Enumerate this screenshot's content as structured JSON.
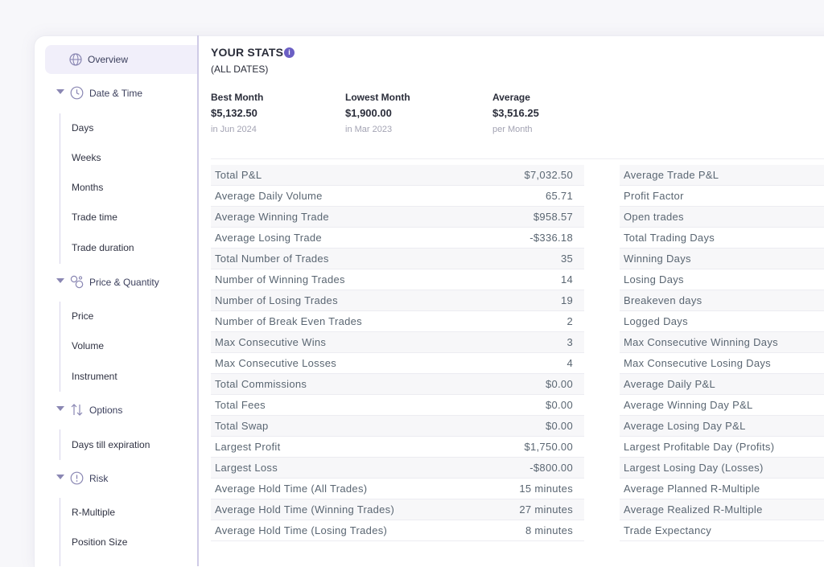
{
  "sidebar": {
    "overview": "Overview",
    "sections": [
      {
        "label": "Date & Time",
        "icon": "clock-icon",
        "items": [
          "Days",
          "Weeks",
          "Months",
          "Trade time",
          "Trade duration"
        ]
      },
      {
        "label": "Price & Quantity",
        "icon": "price-quantity-icon",
        "items": [
          "Price",
          "Volume",
          "Instrument"
        ]
      },
      {
        "label": "Options",
        "icon": "up-down-arrows-icon",
        "items": [
          "Days till expiration"
        ]
      },
      {
        "label": "Risk",
        "icon": "alert-circle-icon",
        "items": [
          "R-Multiple",
          "Position Size"
        ]
      }
    ]
  },
  "stats": {
    "title": "YOUR STATS",
    "info": "i",
    "subtitle": "(ALL DATES)",
    "kpis": [
      {
        "label": "Best Month",
        "value": "$5,132.50",
        "note": "in Jun 2024"
      },
      {
        "label": "Lowest Month",
        "value": "$1,900.00",
        "note": "in Mar 2023"
      },
      {
        "label": "Average",
        "value": "$3,516.25",
        "note": "per Month"
      }
    ]
  },
  "left_table": [
    {
      "name": "Total P&L",
      "value": "$7,032.50"
    },
    {
      "name": "Average Daily Volume",
      "value": "65.71"
    },
    {
      "name": "Average Winning Trade",
      "value": "$958.57"
    },
    {
      "name": "Average Losing Trade",
      "value": "-$336.18"
    },
    {
      "name": "Total Number of Trades",
      "value": "35"
    },
    {
      "name": "Number of Winning Trades",
      "value": "14"
    },
    {
      "name": "Number of Losing Trades",
      "value": "19"
    },
    {
      "name": "Number of Break Even Trades",
      "value": "2"
    },
    {
      "name": "Max Consecutive Wins",
      "value": "3"
    },
    {
      "name": "Max Consecutive Losses",
      "value": "4"
    },
    {
      "name": "Total Commissions",
      "value": "$0.00"
    },
    {
      "name": "Total Fees",
      "value": "$0.00"
    },
    {
      "name": "Total Swap",
      "value": "$0.00"
    },
    {
      "name": "Largest Profit",
      "value": "$1,750.00"
    },
    {
      "name": "Largest Loss",
      "value": "-$800.00"
    },
    {
      "name": "Average Hold Time (All Trades)",
      "value": "15 minutes"
    },
    {
      "name": "Average Hold Time (Winning Trades)",
      "value": "27 minutes"
    },
    {
      "name": "Average Hold Time (Losing Trades)",
      "value": "8 minutes"
    }
  ],
  "right_table": [
    {
      "name": "Average Trade P&L"
    },
    {
      "name": "Profit Factor"
    },
    {
      "name": "Open trades"
    },
    {
      "name": "Total Trading Days"
    },
    {
      "name": "Winning Days"
    },
    {
      "name": "Losing Days"
    },
    {
      "name": "Breakeven days"
    },
    {
      "name": "Logged Days"
    },
    {
      "name": "Max Consecutive Winning Days"
    },
    {
      "name": "Max Consecutive Losing Days"
    },
    {
      "name": "Average Daily P&L"
    },
    {
      "name": "Average Winning Day P&L"
    },
    {
      "name": "Average Losing Day P&L"
    },
    {
      "name": "Largest Profitable Day (Profits)"
    },
    {
      "name": "Largest Losing Day (Losses)"
    },
    {
      "name": "Average Planned R-Multiple"
    },
    {
      "name": "Average Realized R-Multiple"
    },
    {
      "name": "Trade Expectancy"
    }
  ],
  "colors": {
    "accent": "#6b5fc4",
    "sidebar_active": "#f1effa",
    "row_alt": "#f7f7f9"
  }
}
